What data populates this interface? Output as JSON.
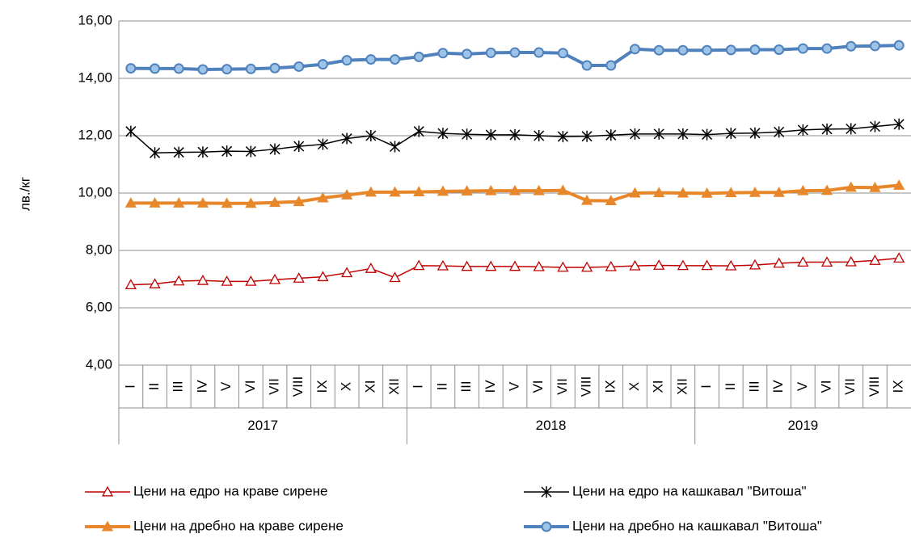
{
  "chart_data": {
    "type": "line",
    "y_label": "лв./кг",
    "groups": [
      {
        "label": "2017",
        "categories": [
          "I",
          "II",
          "III",
          "IV",
          "V",
          "VI",
          "VII",
          "VIII",
          "IX",
          "X",
          "XI",
          "XII"
        ]
      },
      {
        "label": "2018",
        "categories": [
          "I",
          "II",
          "III",
          "IV",
          "V",
          "VI",
          "VII",
          "VIII",
          "IX",
          "X",
          "XI",
          "XII"
        ]
      },
      {
        "label": "2019",
        "categories": [
          "I",
          "II",
          "III",
          "IV",
          "V",
          "VI",
          "VII",
          "VIII",
          "IX"
        ]
      }
    ],
    "ylim": [
      4,
      16
    ],
    "yticks": [
      {
        "value": 4,
        "label": "4,00"
      },
      {
        "value": 6,
        "label": "6,00"
      },
      {
        "value": 8,
        "label": "8,00"
      },
      {
        "value": 10,
        "label": "10,00"
      },
      {
        "value": 12,
        "label": "12,00"
      },
      {
        "value": 14,
        "label": "14,00"
      },
      {
        "value": 16,
        "label": "16,00"
      }
    ],
    "grid": true,
    "legend": "bottom",
    "series": [
      {
        "name": "Цени на едро на краве сирене",
        "color": "#c00000",
        "marker": "triangle-open",
        "values": [
          6.8,
          6.83,
          6.93,
          6.95,
          6.92,
          6.92,
          6.98,
          7.03,
          7.08,
          7.22,
          7.37,
          7.05,
          7.47,
          7.46,
          7.44,
          7.44,
          7.44,
          7.43,
          7.41,
          7.41,
          7.43,
          7.46,
          7.48,
          7.47,
          7.47,
          7.46,
          7.49,
          7.55,
          7.59,
          7.59,
          7.6,
          7.65,
          7.73
        ]
      },
      {
        "name": "Цени на едро на кашкавал \"Витоша\"",
        "color": "#000000",
        "marker": "star",
        "values": [
          12.15,
          11.4,
          11.42,
          11.43,
          11.46,
          11.45,
          11.53,
          11.63,
          11.7,
          11.9,
          12.0,
          11.62,
          12.15,
          12.08,
          12.05,
          12.03,
          12.03,
          12.0,
          11.97,
          11.98,
          12.02,
          12.06,
          12.06,
          12.06,
          12.04,
          12.08,
          12.09,
          12.13,
          12.2,
          12.23,
          12.24,
          12.32,
          12.4
        ]
      },
      {
        "name": "Цени на дребно на краве сирене",
        "color": "#e8862a",
        "marker": "triangle",
        "values": [
          9.65,
          9.65,
          9.65,
          9.65,
          9.64,
          9.64,
          9.67,
          9.7,
          9.83,
          9.93,
          10.03,
          10.03,
          10.04,
          10.06,
          10.07,
          10.08,
          10.08,
          10.08,
          10.09,
          9.74,
          9.73,
          10.0,
          10.01,
          10.0,
          9.99,
          10.01,
          10.02,
          10.02,
          10.08,
          10.09,
          10.2,
          10.19,
          10.27
        ]
      },
      {
        "name": "Цени на дребно на кашкавал \"Витоша\"",
        "color": "#4f81bd",
        "marker": "circle",
        "values": [
          14.35,
          14.34,
          14.34,
          14.31,
          14.32,
          14.33,
          14.36,
          14.41,
          14.49,
          14.63,
          14.66,
          14.66,
          14.75,
          14.88,
          14.85,
          14.89,
          14.9,
          14.9,
          14.88,
          14.45,
          14.45,
          15.02,
          14.98,
          14.98,
          14.98,
          14.99,
          15.0,
          15.0,
          15.04,
          15.04,
          15.12,
          15.13,
          15.15
        ]
      }
    ]
  }
}
